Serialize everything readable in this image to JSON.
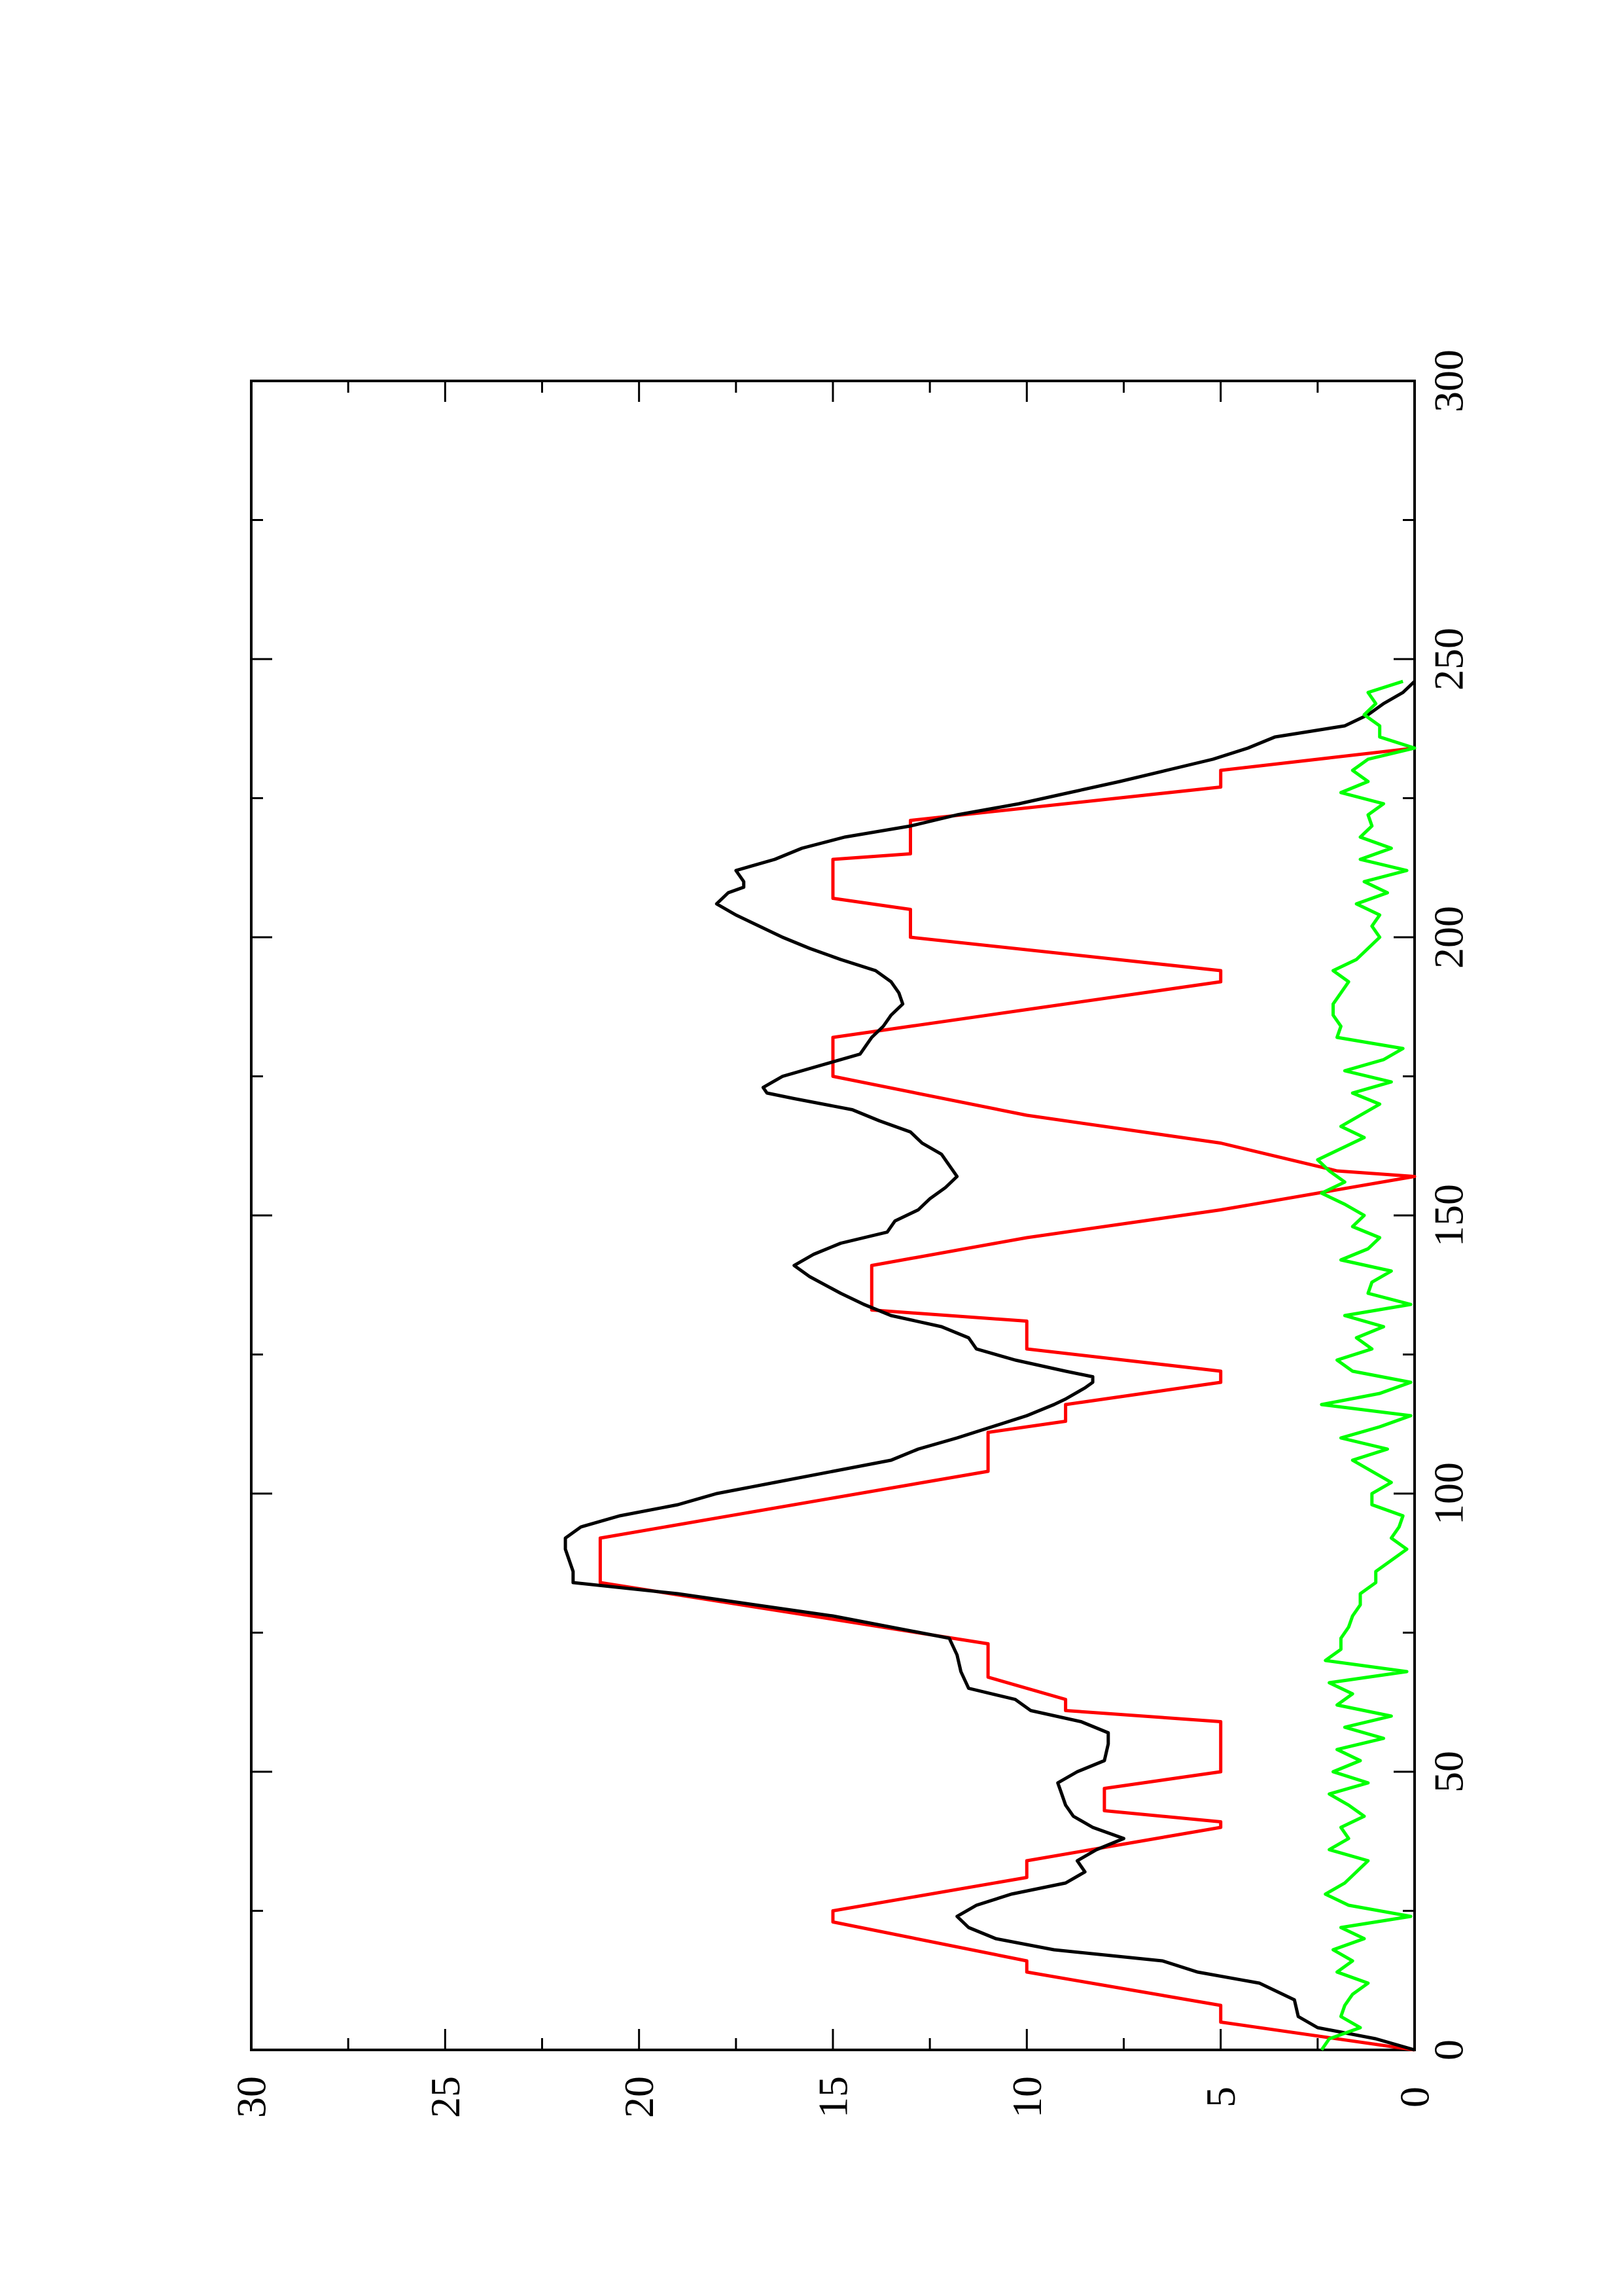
{
  "chart_data": {
    "type": "line",
    "orientation": "rotated 90° counter-clockwise (x axis runs bottom-to-top on the page, y axis runs right-to-left)",
    "title": "",
    "xlabel": "",
    "ylabel": "",
    "xlim": [
      0,
      300
    ],
    "ylim": [
      0,
      30
    ],
    "x_ticks": [
      0,
      50,
      100,
      150,
      200,
      250,
      300
    ],
    "y_ticks": [
      0,
      5,
      10,
      15,
      20,
      25,
      30
    ],
    "x_minor_step": 25,
    "y_minor_step": 2.5,
    "grid": false,
    "legend": "none",
    "series": [
      {
        "color": "#ff0000",
        "style": "stepped ramp",
        "points": [
          [
            0,
            0
          ],
          [
            5,
            5
          ],
          [
            8,
            5
          ],
          [
            14,
            10
          ],
          [
            16,
            10
          ],
          [
            23,
            15
          ],
          [
            25,
            15
          ],
          [
            31,
            10
          ],
          [
            34,
            10
          ],
          [
            40,
            5
          ],
          [
            41,
            5
          ],
          [
            43,
            8
          ],
          [
            47,
            8
          ],
          [
            50,
            5
          ],
          [
            59,
            5
          ],
          [
            61,
            9
          ],
          [
            63,
            9
          ],
          [
            67,
            11
          ],
          [
            73,
            11
          ],
          [
            84,
            21
          ],
          [
            92,
            21
          ],
          [
            104,
            11
          ],
          [
            111,
            11
          ],
          [
            113,
            9
          ],
          [
            116,
            9
          ],
          [
            120,
            5
          ],
          [
            122,
            5
          ],
          [
            126,
            10
          ],
          [
            131,
            10
          ],
          [
            133,
            14
          ],
          [
            141,
            14
          ],
          [
            146,
            10
          ],
          [
            151,
            5
          ],
          [
            157,
            0
          ],
          [
            158,
            2
          ],
          [
            163,
            5
          ],
          [
            168,
            10
          ],
          [
            175,
            15
          ],
          [
            182,
            15
          ],
          [
            187,
            10
          ],
          [
            192,
            5
          ],
          [
            194,
            5
          ],
          [
            200,
            13
          ],
          [
            205,
            13
          ],
          [
            207,
            15
          ],
          [
            214,
            15
          ],
          [
            215,
            13
          ],
          [
            221,
            13
          ],
          [
            227,
            5
          ],
          [
            230,
            5
          ],
          [
            234,
            0
          ]
        ]
      },
      {
        "color": "#000000",
        "style": "smooth",
        "points": [
          [
            0,
            0
          ],
          [
            2,
            1
          ],
          [
            4,
            2.5
          ],
          [
            6,
            3
          ],
          [
            9,
            3.1
          ],
          [
            12,
            4
          ],
          [
            14,
            5.6
          ],
          [
            16,
            6.5
          ],
          [
            18,
            9.3
          ],
          [
            20,
            10.8
          ],
          [
            22,
            11.5
          ],
          [
            24,
            11.8
          ],
          [
            26,
            11.3
          ],
          [
            28,
            10.4
          ],
          [
            30,
            9
          ],
          [
            32,
            8.5
          ],
          [
            34,
            8.7
          ],
          [
            36,
            8.2
          ],
          [
            38,
            7.5
          ],
          [
            40,
            8.3
          ],
          [
            42,
            8.8
          ],
          [
            44,
            9
          ],
          [
            46,
            9.1
          ],
          [
            48,
            9.2
          ],
          [
            50,
            8.7
          ],
          [
            52,
            8
          ],
          [
            55,
            7.9
          ],
          [
            57,
            7.9
          ],
          [
            59,
            8.6
          ],
          [
            61,
            9.9
          ],
          [
            63,
            10.3
          ],
          [
            65,
            11.5
          ],
          [
            68,
            11.7
          ],
          [
            71,
            11.8
          ],
          [
            74,
            12
          ],
          [
            78,
            15
          ],
          [
            82,
            19
          ],
          [
            84,
            21.7
          ],
          [
            86,
            21.7
          ],
          [
            88,
            21.8
          ],
          [
            90,
            21.9
          ],
          [
            92,
            21.9
          ],
          [
            94,
            21.5
          ],
          [
            96,
            20.5
          ],
          [
            98,
            19
          ],
          [
            100,
            18
          ],
          [
            102,
            16.5
          ],
          [
            104,
            15
          ],
          [
            106,
            13.5
          ],
          [
            108,
            12.8
          ],
          [
            110,
            11.8
          ],
          [
            112,
            10.9
          ],
          [
            114,
            10
          ],
          [
            116,
            9.3
          ],
          [
            117,
            9
          ],
          [
            119,
            8.5
          ],
          [
            120,
            8.3
          ],
          [
            121,
            8.3
          ],
          [
            122,
            9
          ],
          [
            124,
            10.3
          ],
          [
            126,
            11.3
          ],
          [
            128,
            11.5
          ],
          [
            130,
            12.2
          ],
          [
            132,
            13.5
          ],
          [
            134,
            14.2
          ],
          [
            136,
            14.8
          ],
          [
            139,
            15.6
          ],
          [
            141,
            16
          ],
          [
            143,
            15.5
          ],
          [
            145,
            14.8
          ],
          [
            147,
            13.6
          ],
          [
            149,
            13.4
          ],
          [
            151,
            12.8
          ],
          [
            153,
            12.5
          ],
          [
            155,
            12.1
          ],
          [
            157,
            11.8
          ],
          [
            159,
            12
          ],
          [
            161,
            12.2
          ],
          [
            163,
            12.7
          ],
          [
            165,
            13
          ],
          [
            167,
            13.8
          ],
          [
            169,
            14.5
          ],
          [
            171,
            16
          ],
          [
            172,
            16.7
          ],
          [
            173,
            16.8
          ],
          [
            175,
            16.3
          ],
          [
            177,
            15.3
          ],
          [
            179,
            14.3
          ],
          [
            182,
            14
          ],
          [
            184,
            13.7
          ],
          [
            186,
            13.5
          ],
          [
            188,
            13.2
          ],
          [
            190,
            13.3
          ],
          [
            192,
            13.5
          ],
          [
            194,
            13.9
          ],
          [
            196,
            14.8
          ],
          [
            198,
            15.6
          ],
          [
            200,
            16.3
          ],
          [
            203,
            17.2
          ],
          [
            204,
            17.5
          ],
          [
            206,
            18
          ],
          [
            208,
            17.7
          ],
          [
            209,
            17.3
          ],
          [
            210,
            17.3
          ],
          [
            212,
            17.5
          ],
          [
            214,
            16.5
          ],
          [
            216,
            15.8
          ],
          [
            218,
            14.7
          ],
          [
            220,
            13
          ],
          [
            222,
            11.8
          ],
          [
            224,
            10.2
          ],
          [
            226,
            8.9
          ],
          [
            228,
            7.6
          ],
          [
            230,
            6.4
          ],
          [
            232,
            5.2
          ],
          [
            234,
            4.3
          ],
          [
            236,
            3.6
          ],
          [
            238,
            1.8
          ],
          [
            240,
            1.2
          ],
          [
            242,
            0.8
          ],
          [
            244,
            0.3
          ],
          [
            246,
            0
          ]
        ]
      },
      {
        "color": "#00ff00",
        "style": "noisy",
        "points": [
          [
            0,
            2.4
          ],
          [
            2,
            2.2
          ],
          [
            4,
            1.4
          ],
          [
            6,
            1.9
          ],
          [
            8,
            1.8
          ],
          [
            10,
            1.6
          ],
          [
            12,
            1.2
          ],
          [
            14,
            2
          ],
          [
            16,
            1.6
          ],
          [
            18,
            2.1
          ],
          [
            20,
            1.3
          ],
          [
            22,
            1.9
          ],
          [
            24,
            0.1
          ],
          [
            26,
            1.7
          ],
          [
            28,
            2.3
          ],
          [
            30,
            1.8
          ],
          [
            32,
            1.5
          ],
          [
            34,
            1.2
          ],
          [
            36,
            2.2
          ],
          [
            38,
            1.7
          ],
          [
            40,
            1.9
          ],
          [
            42,
            1.3
          ],
          [
            44,
            1.7
          ],
          [
            46,
            2.2
          ],
          [
            48,
            1.2
          ],
          [
            50,
            2.1
          ],
          [
            52,
            1.4
          ],
          [
            54,
            2
          ],
          [
            56,
            0.8
          ],
          [
            58,
            1.8
          ],
          [
            60,
            0.6
          ],
          [
            62,
            2
          ],
          [
            64,
            1.6
          ],
          [
            66,
            2.2
          ],
          [
            68,
            0.2
          ],
          [
            70,
            2.3
          ],
          [
            72,
            1.9
          ],
          [
            74,
            1.9
          ],
          [
            76,
            1.7
          ],
          [
            78,
            1.6
          ],
          [
            80,
            1.4
          ],
          [
            82,
            1.4
          ],
          [
            84,
            1
          ],
          [
            86,
            1
          ],
          [
            88,
            0.6
          ],
          [
            90,
            0.2
          ],
          [
            92,
            0.6
          ],
          [
            94,
            0.4
          ],
          [
            96,
            0.3
          ],
          [
            98,
            1.1
          ],
          [
            100,
            1.1
          ],
          [
            102,
            0.6
          ],
          [
            104,
            1.1
          ],
          [
            106,
            1.6
          ],
          [
            108,
            0.7
          ],
          [
            110,
            1.9
          ],
          [
            112,
            0.9
          ],
          [
            114,
            0.1
          ],
          [
            116,
            2.4
          ],
          [
            118,
            0.9
          ],
          [
            120,
            0.1
          ],
          [
            122,
            1.6
          ],
          [
            124,
            2
          ],
          [
            126,
            1.1
          ],
          [
            128,
            1.5
          ],
          [
            130,
            0.8
          ],
          [
            132,
            1.8
          ],
          [
            134,
            0.1
          ],
          [
            136,
            1.2
          ],
          [
            138,
            1.1
          ],
          [
            140,
            0.6
          ],
          [
            142,
            1.9
          ],
          [
            144,
            1.2
          ],
          [
            146,
            0.9
          ],
          [
            148,
            1.6
          ],
          [
            150,
            1.3
          ],
          [
            152,
            1.8
          ],
          [
            154,
            2.4
          ],
          [
            156,
            1.8
          ],
          [
            158,
            2.2
          ],
          [
            160,
            2.5
          ],
          [
            162,
            1.9
          ],
          [
            164,
            1.3
          ],
          [
            166,
            1.9
          ],
          [
            168,
            1.4
          ],
          [
            170,
            0.9
          ],
          [
            172,
            1.6
          ],
          [
            174,
            0.6
          ],
          [
            176,
            1.8
          ],
          [
            178,
            0.8
          ],
          [
            180,
            0.3
          ],
          [
            182,
            2
          ],
          [
            184,
            1.9
          ],
          [
            186,
            2.1
          ],
          [
            188,
            2.1
          ],
          [
            190,
            1.9
          ],
          [
            192,
            1.7
          ],
          [
            194,
            2.1
          ],
          [
            196,
            1.5
          ],
          [
            198,
            1.2
          ],
          [
            200,
            0.9
          ],
          [
            202,
            1.1
          ],
          [
            204,
            0.9
          ],
          [
            206,
            1.5
          ],
          [
            208,
            0.7
          ],
          [
            210,
            1.3
          ],
          [
            212,
            0.2
          ],
          [
            214,
            1.4
          ],
          [
            216,
            0.6
          ],
          [
            218,
            1.4
          ],
          [
            220,
            1.1
          ],
          [
            222,
            1.2
          ],
          [
            224,
            0.8
          ],
          [
            226,
            1.9
          ],
          [
            228,
            1.2
          ],
          [
            230,
            1.6
          ],
          [
            232,
            1.2
          ],
          [
            234,
            0
          ],
          [
            236,
            0.9
          ],
          [
            238,
            0.9
          ],
          [
            240,
            1.3
          ],
          [
            242,
            1
          ],
          [
            244,
            1.2
          ],
          [
            246,
            0.3
          ]
        ]
      }
    ]
  }
}
